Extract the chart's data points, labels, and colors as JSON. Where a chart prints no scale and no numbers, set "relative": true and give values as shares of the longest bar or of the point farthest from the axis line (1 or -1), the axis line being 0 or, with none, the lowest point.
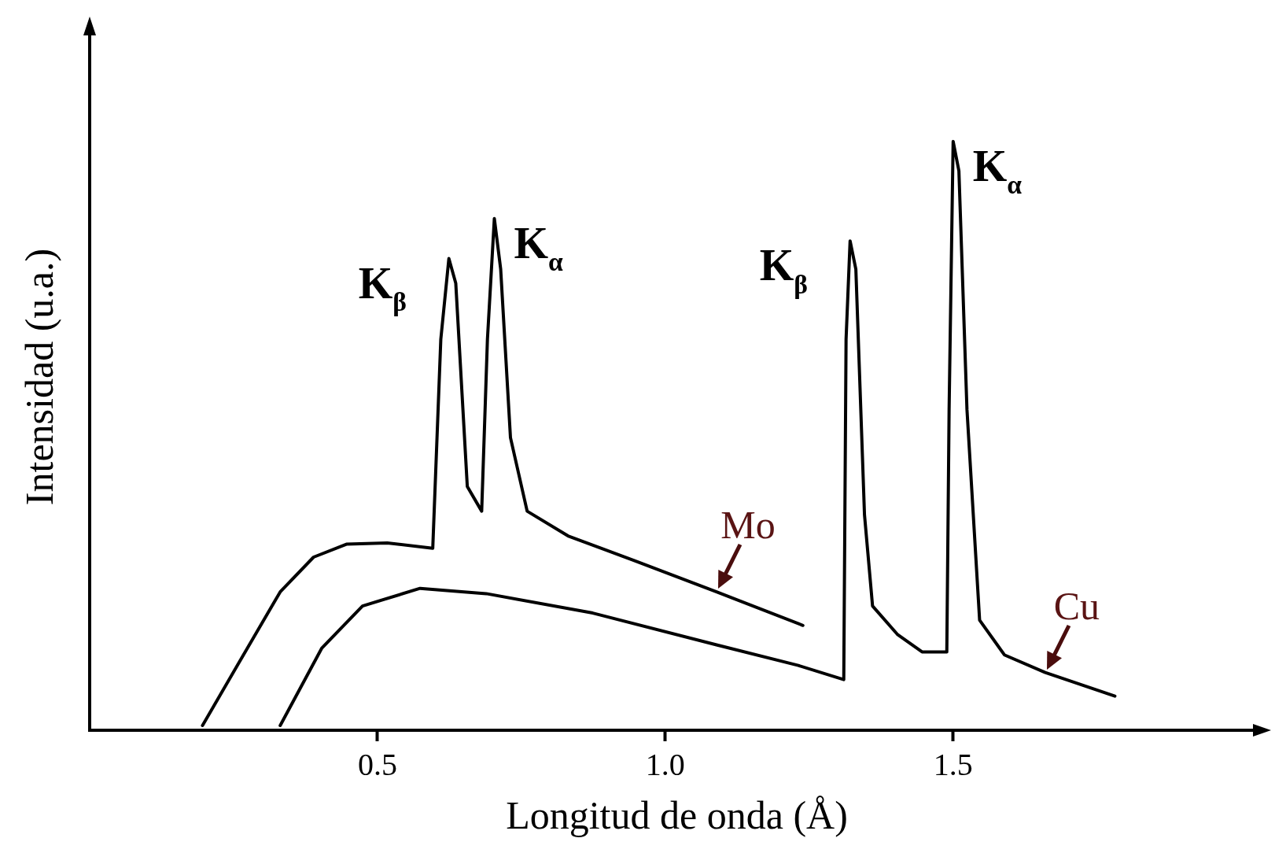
{
  "chart_data": {
    "type": "line",
    "xlabel": "Longitud de onda (Å)",
    "ylabel": "Intensidad (u.a.)",
    "relative": true,
    "xlim": [
      0,
      2.04
    ],
    "xticks": [
      {
        "value": 0.5,
        "label": "0.5"
      },
      {
        "value": 1.0,
        "label": "1.0"
      },
      {
        "value": 1.5,
        "label": "1.5"
      }
    ],
    "grid": false,
    "legend": false,
    "marker": "none",
    "line_style": "solid",
    "series": [
      {
        "name": "Mo",
        "color": "#000000",
        "x": [
          0.196,
          0.26,
          0.331,
          0.389,
          0.446,
          0.517,
          0.596,
          0.61,
          0.624,
          0.636,
          0.656,
          0.681,
          0.691,
          0.703,
          0.714,
          0.731,
          0.76,
          0.831,
          0.946,
          1.089,
          1.239
        ],
        "values": [
          0.008,
          0.116,
          0.235,
          0.294,
          0.316,
          0.318,
          0.309,
          0.664,
          0.801,
          0.759,
          0.414,
          0.372,
          0.664,
          0.869,
          0.783,
          0.497,
          0.372,
          0.33,
          0.288,
          0.235,
          0.178
        ]
      },
      {
        "name": "Cu",
        "color": "#000000",
        "x": [
          0.331,
          0.403,
          0.474,
          0.574,
          0.689,
          0.874,
          1.089,
          1.231,
          1.31,
          1.314,
          1.321,
          1.331,
          1.346,
          1.36,
          1.403,
          1.446,
          1.489,
          1.493,
          1.5,
          1.51,
          1.524,
          1.546,
          1.589,
          1.66,
          1.781
        ],
        "values": [
          0.008,
          0.139,
          0.211,
          0.241,
          0.232,
          0.199,
          0.145,
          0.11,
          0.086,
          0.664,
          0.831,
          0.783,
          0.366,
          0.211,
          0.163,
          0.133,
          0.133,
          0.545,
          1.0,
          0.95,
          0.545,
          0.187,
          0.128,
          0.098,
          0.058
        ]
      }
    ],
    "annotations": [
      {
        "text": "K$_{β}$",
        "x": 0.624,
        "y": 0.801
      },
      {
        "text": "K$_{α}$",
        "x": 0.703,
        "y": 0.869
      },
      {
        "text": "K$_{β}$",
        "x": 1.321,
        "y": 0.831
      },
      {
        "text": "K$_{α}$",
        "x": 1.5,
        "y": 1.0
      }
    ]
  }
}
